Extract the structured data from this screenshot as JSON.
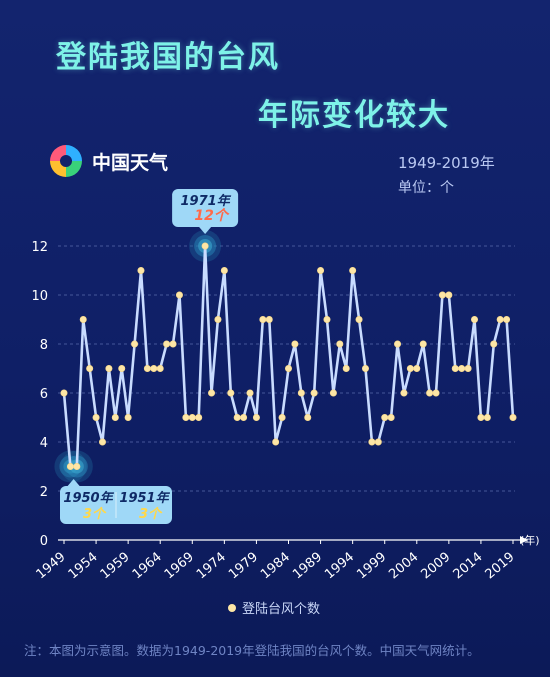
{
  "header": {
    "title_line1": "登陆我国的台风",
    "title_line2": "年际变化较大",
    "brand": "中国天气",
    "range": "1949-2019年",
    "unit": "单位：个"
  },
  "colors": {
    "line": "#c9dcff",
    "point": "#fde6a6",
    "title": "#7ef2e8",
    "callout": "#9fd8f7",
    "highlight": "#ff6b4a"
  },
  "callouts": {
    "max": {
      "year": "1971年",
      "value": "12个"
    },
    "min1": {
      "year": "1950年",
      "value": "3个"
    },
    "min2": {
      "year": "1951年",
      "value": "3个"
    }
  },
  "note": "注：本图为示意图。数据为1949-2019年登陆我国的台风个数。中国天气网统计。",
  "chart_data": {
    "type": "line",
    "x": [
      1949,
      1950,
      1951,
      1952,
      1953,
      1954,
      1955,
      1956,
      1957,
      1958,
      1959,
      1960,
      1961,
      1962,
      1963,
      1964,
      1965,
      1966,
      1967,
      1968,
      1969,
      1970,
      1971,
      1972,
      1973,
      1974,
      1975,
      1976,
      1977,
      1978,
      1979,
      1980,
      1981,
      1982,
      1983,
      1984,
      1985,
      1986,
      1987,
      1988,
      1989,
      1990,
      1991,
      1992,
      1993,
      1994,
      1995,
      1996,
      1997,
      1998,
      1999,
      2000,
      2001,
      2002,
      2003,
      2004,
      2005,
      2006,
      2007,
      2008,
      2009,
      2010,
      2011,
      2012,
      2013,
      2014,
      2015,
      2016,
      2017,
      2018,
      2019
    ],
    "series": [
      {
        "name": "登陆台风个数",
        "values": [
          6,
          3,
          3,
          9,
          7,
          5,
          4,
          7,
          5,
          7,
          5,
          8,
          11,
          7,
          7,
          7,
          8,
          8,
          10,
          5,
          5,
          5,
          12,
          6,
          9,
          11,
          6,
          5,
          5,
          6,
          5,
          9,
          9,
          4,
          5,
          7,
          8,
          6,
          5,
          6,
          11,
          9,
          6,
          8,
          7,
          11,
          9,
          7,
          4,
          4,
          5,
          5,
          8,
          6,
          7,
          7,
          8,
          6,
          6,
          10,
          10,
          7,
          7,
          7,
          9,
          5,
          5,
          8,
          9,
          9,
          5
        ]
      }
    ],
    "x_ticks": [
      "1949",
      "1954",
      "1959",
      "1964",
      "1969",
      "1974",
      "1979",
      "1984",
      "1989",
      "1994",
      "1999",
      "2004",
      "2009",
      "2014",
      "2019"
    ],
    "y_ticks": [
      "0",
      "2",
      "4",
      "6",
      "8",
      "10",
      "12"
    ],
    "xlabel": "(年)",
    "ylabel": "",
    "ylim": [
      0,
      13
    ],
    "grid": true,
    "legend": "bottom"
  }
}
